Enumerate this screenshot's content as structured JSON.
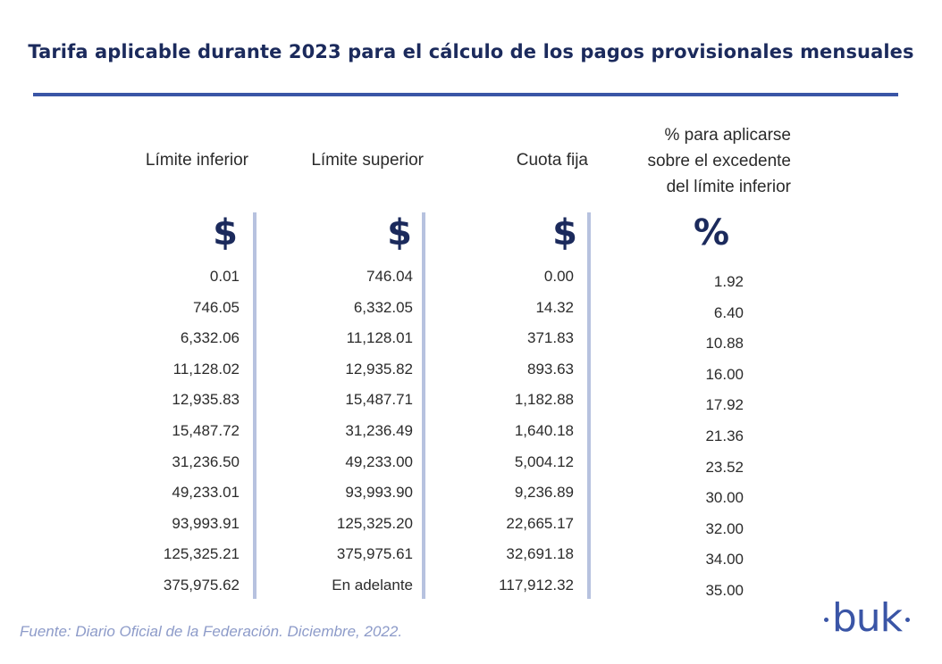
{
  "title": "Tarifa aplicable durante 2023 para el cálculo de los pagos provisionales mensuales",
  "headers": {
    "limite_inferior": "Límite inferior",
    "limite_superior": "Límite superior",
    "cuota_fija": "Cuota fija",
    "porcentaje_line1": "% para aplicarse",
    "porcentaje_line2": "sobre el excedente",
    "porcentaje_line3": "del límite inferior"
  },
  "symbols": [
    "$",
    "$",
    "$",
    "%"
  ],
  "rows": [
    [
      "0.01",
      "746.04",
      "0.00",
      "1.92"
    ],
    [
      "746.05",
      "6,332.05",
      "14.32",
      "6.40"
    ],
    [
      "6,332.06",
      "11,128.01",
      "371.83",
      "10.88"
    ],
    [
      "11,128.02",
      "12,935.82",
      "893.63",
      "16.00"
    ],
    [
      "12,935.83",
      "15,487.71",
      "1,182.88",
      "17.92"
    ],
    [
      "15,487.72",
      "31,236.49",
      "1,640.18",
      "21.36"
    ],
    [
      "31,236.50",
      "49,233.00",
      "5,004.12",
      "23.52"
    ],
    [
      "49,233.01",
      "93,993.90",
      "9,236.89",
      "30.00"
    ],
    [
      "93,993.91",
      "125,325.20",
      "22,665.17",
      "32.00"
    ],
    [
      "125,325.21",
      "375,975.61",
      "32,691.18",
      "34.00"
    ],
    [
      "375,975.62",
      "En adelante",
      "117,912.32",
      "35.00"
    ]
  ],
  "source": "Fuente: Diario Oficial de la Federación. Diciembre, 2022.",
  "logo": "buk",
  "colors": {
    "title": "#1b2a5c",
    "accent": "#3a55a6",
    "divider": "#b7c2df",
    "source": "#8d9bc9"
  }
}
